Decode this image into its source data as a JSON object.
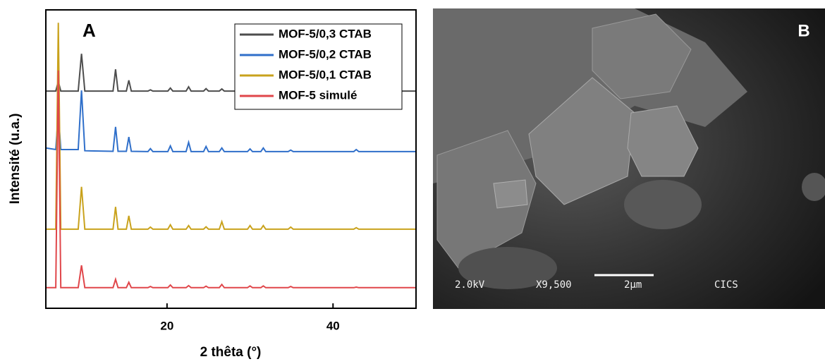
{
  "chart_data": {
    "type": "line",
    "panel_label": "A",
    "x_label": "2 thêta (°)",
    "y_label": "Intensité (u.a.)",
    "xlim": [
      5.4,
      50
    ],
    "xticks": [
      20,
      40
    ],
    "ylim": [
      0,
      100
    ],
    "legend": "upper right",
    "x": [
      5.4,
      6.6,
      6.9,
      7.2,
      9.3,
      9.7,
      10.1,
      13.5,
      13.8,
      14.1,
      15.1,
      15.4,
      15.7,
      17.7,
      18.0,
      18.3,
      20.1,
      20.4,
      20.7,
      22.3,
      22.6,
      22.9,
      24.4,
      24.7,
      25.0,
      26.3,
      26.6,
      26.9,
      29.7,
      30.0,
      30.3,
      31.3,
      31.6,
      31.9,
      34.6,
      34.9,
      35.2,
      42.5,
      42.8,
      43.1,
      50
    ],
    "series": [
      {
        "name": "MOF-5/0,3 CTAB",
        "color": "#4d4d4d",
        "values": [
          72.8,
          72.8,
          76,
          72.8,
          72.8,
          85.3,
          72.8,
          72.8,
          80.1,
          72.8,
          72.8,
          76.4,
          72.8,
          72.8,
          73.2,
          72.8,
          72.8,
          73.8,
          72.8,
          72.8,
          74.2,
          72.8,
          72.8,
          73.6,
          72.8,
          72.8,
          73.5,
          72.8,
          72.8,
          73.2,
          72.8,
          72.8,
          73.2,
          72.8,
          72.8,
          73,
          72.8,
          72.8,
          73,
          72.8,
          72.8
        ]
      },
      {
        "name": "MOF-5/0,2 CTAB",
        "color": "#2f6fca",
        "values": [
          53.7,
          53.2,
          65.5,
          53.2,
          53.2,
          73,
          52.8,
          52.6,
          60.8,
          52.6,
          52.6,
          57.4,
          52.6,
          52.5,
          53.5,
          52.5,
          52.5,
          54.4,
          52.5,
          52.5,
          55.6,
          52.5,
          52.5,
          54.2,
          52.5,
          52.5,
          53.7,
          52.5,
          52.5,
          53.4,
          52.5,
          52.5,
          53.7,
          52.5,
          52.5,
          53,
          52.5,
          52.5,
          53.2,
          52.5,
          52.5
        ]
      },
      {
        "name": "MOF-5/0,1 CTAB",
        "color": "#c9a21c",
        "values": [
          26.5,
          26.5,
          95.7,
          26.5,
          26.5,
          40.7,
          26.5,
          26.5,
          34,
          26.5,
          26.5,
          31,
          26.5,
          26.5,
          27.2,
          26.5,
          26.5,
          28,
          26.5,
          26.5,
          27.7,
          26.5,
          26.5,
          27.3,
          26.5,
          26.5,
          29,
          26.5,
          26.5,
          27.7,
          26.5,
          26.5,
          27.7,
          26.5,
          26.5,
          27.2,
          26.5,
          26.5,
          27,
          26.5,
          26.5
        ]
      },
      {
        "name": "MOF-5 simulé",
        "color": "#e0464a",
        "values": [
          6.9,
          6.9,
          79.7,
          6.9,
          6.9,
          14.4,
          6.9,
          6.9,
          9.7,
          6.9,
          6.9,
          8.7,
          6.9,
          6.9,
          7.3,
          6.9,
          6.9,
          7.8,
          6.9,
          6.9,
          7.6,
          6.9,
          6.9,
          7.4,
          6.9,
          6.9,
          8,
          6.9,
          6.9,
          7.5,
          6.9,
          6.9,
          7.5,
          6.9,
          6.9,
          7.3,
          6.9,
          6.9,
          7.1,
          6.9,
          6.9
        ]
      }
    ]
  },
  "sem_image": {
    "panel_label": "B",
    "voltage": "2.0kV",
    "magnification": "X9,500",
    "scale": "2μm",
    "facility": "CICS"
  }
}
